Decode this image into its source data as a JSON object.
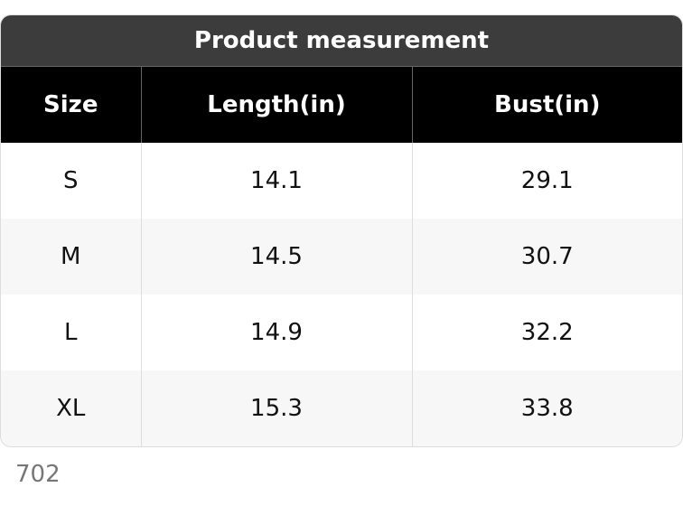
{
  "title": "Product measurement",
  "table": {
    "header": [
      "Size",
      "Length(in)",
      "Bust(in)"
    ],
    "rows": [
      [
        "S",
        "14.1",
        "29.1"
      ],
      [
        "M",
        "14.5",
        "30.7"
      ],
      [
        "L",
        "14.9",
        "32.2"
      ],
      [
        "XL",
        "15.3",
        "33.8"
      ]
    ]
  },
  "footer": "702"
}
